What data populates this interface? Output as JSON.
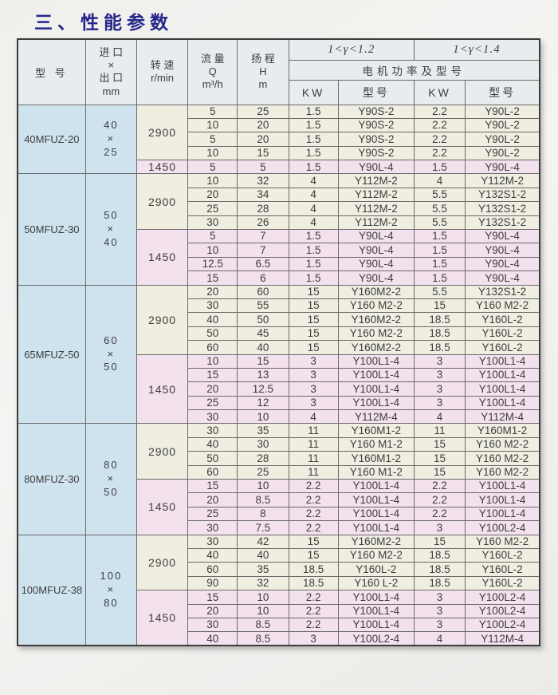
{
  "page": {
    "title": "三、性能参数"
  },
  "table": {
    "headers": {
      "model": "型  号",
      "inlet_outlet": [
        "进 口",
        "×",
        "出 口",
        "mm"
      ],
      "speed": [
        "转 速",
        "r/min"
      ],
      "flow": [
        "流 量",
        "Q",
        "m³/h"
      ],
      "head": [
        "扬 程",
        "H",
        "m"
      ],
      "gamma1": "1<γ<1.2",
      "gamma2": "1<γ<1.4",
      "motor_power_label": "电机功率及型号",
      "kw": "KW",
      "motor_model": "型号"
    },
    "sections": [
      {
        "model": "40MFUZ-20",
        "inlet_outlet": [
          "40",
          "×",
          "25"
        ],
        "speed_groups": [
          {
            "speed": "2900",
            "rows": [
              [
                "5",
                "25",
                "1.5",
                "Y90S-2",
                "2.2",
                "Y90L-2"
              ],
              [
                "10",
                "20",
                "1.5",
                "Y90S-2",
                "2.2",
                "Y90L-2"
              ],
              [
                "5",
                "20",
                "1.5",
                "Y90S-2",
                "2.2",
                "Y90L-2"
              ],
              [
                "10",
                "15",
                "1.5",
                "Y90S-2",
                "2.2",
                "Y90L-2"
              ]
            ]
          },
          {
            "speed": "1450",
            "rows": [
              [
                "5",
                "5",
                "1.5",
                "Y90L-4",
                "1.5",
                "Y90L-4"
              ]
            ]
          }
        ]
      },
      {
        "model": "50MFUZ-30",
        "inlet_outlet": [
          "50",
          "×",
          "40"
        ],
        "speed_groups": [
          {
            "speed": "2900",
            "rows": [
              [
                "10",
                "32",
                "4",
                "Y112M-2",
                "4",
                "Y112M-2"
              ],
              [
                "20",
                "34",
                "4",
                "Y112M-2",
                "5.5",
                "Y132S1-2"
              ],
              [
                "25",
                "28",
                "4",
                "Y112M-2",
                "5.5",
                "Y132S1-2"
              ],
              [
                "30",
                "26",
                "4",
                "Y112M-2",
                "5.5",
                "Y132S1-2"
              ]
            ]
          },
          {
            "speed": "1450",
            "rows": [
              [
                "5",
                "7",
                "1.5",
                "Y90L-4",
                "1.5",
                "Y90L-4"
              ],
              [
                "10",
                "7",
                "1.5",
                "Y90L-4",
                "1.5",
                "Y90L-4"
              ],
              [
                "12.5",
                "6.5",
                "1.5",
                "Y90L-4",
                "1.5",
                "Y90L-4"
              ],
              [
                "15",
                "6",
                "1.5",
                "Y90L-4",
                "1.5",
                "Y90L-4"
              ]
            ]
          }
        ]
      },
      {
        "model": "65MFUZ-50",
        "inlet_outlet": [
          "60",
          "×",
          "50"
        ],
        "speed_groups": [
          {
            "speed": "2900",
            "rows": [
              [
                "20",
                "60",
                "15",
                "Y160M2-2",
                "5.5",
                "Y132S1-2"
              ],
              [
                "30",
                "55",
                "15",
                "Y160 M2-2",
                "15",
                "Y160 M2-2"
              ],
              [
                "40",
                "50",
                "15",
                "Y160M2-2",
                "18.5",
                "Y160L-2"
              ],
              [
                "50",
                "45",
                "15",
                "Y160 M2-2",
                "18.5",
                "Y160L-2"
              ],
              [
                "60",
                "40",
                "15",
                "Y160M2-2",
                "18.5",
                "Y160L-2"
              ]
            ]
          },
          {
            "speed": "1450",
            "rows": [
              [
                "10",
                "15",
                "3",
                "Y100L1-4",
                "3",
                "Y100L1-4"
              ],
              [
                "15",
                "13",
                "3",
                "Y100L1-4",
                "3",
                "Y100L1-4"
              ],
              [
                "20",
                "12.5",
                "3",
                "Y100L1-4",
                "3",
                "Y100L1-4"
              ],
              [
                "25",
                "12",
                "3",
                "Y100L1-4",
                "3",
                "Y100L1-4"
              ],
              [
                "30",
                "10",
                "4",
                "Y112M-4",
                "4",
                "Y112M-4"
              ]
            ]
          }
        ]
      },
      {
        "model": "80MFUZ-30",
        "inlet_outlet": [
          "80",
          "×",
          "50"
        ],
        "speed_groups": [
          {
            "speed": "2900",
            "rows": [
              [
                "30",
                "35",
                "11",
                "Y160M1-2",
                "11",
                "Y160M1-2"
              ],
              [
                "40",
                "30",
                "11",
                "Y160 M1-2",
                "15",
                "Y160 M2-2"
              ],
              [
                "50",
                "28",
                "11",
                "Y160M1-2",
                "15",
                "Y160 M2-2"
              ],
              [
                "60",
                "25",
                "11",
                "Y160 M1-2",
                "15",
                "Y160 M2-2"
              ]
            ]
          },
          {
            "speed": "1450",
            "rows": [
              [
                "15",
                "10",
                "2.2",
                "Y100L1-4",
                "2.2",
                "Y100L1-4"
              ],
              [
                "20",
                "8.5",
                "2.2",
                "Y100L1-4",
                "2.2",
                "Y100L1-4"
              ],
              [
                "25",
                "8",
                "2.2",
                "Y100L1-4",
                "2.2",
                "Y100L1-4"
              ],
              [
                "30",
                "7.5",
                "2.2",
                "Y100L1-4",
                "3",
                "Y100L2-4"
              ]
            ]
          }
        ]
      },
      {
        "model": "100MFUZ-38",
        "inlet_outlet": [
          "100",
          "×",
          "80"
        ],
        "speed_groups": [
          {
            "speed": "2900",
            "rows": [
              [
                "30",
                "42",
                "15",
                "Y160M2-2",
                "15",
                "Y160 M2-2"
              ],
              [
                "40",
                "40",
                "15",
                "Y160 M2-2",
                "18.5",
                "Y160L-2"
              ],
              [
                "60",
                "35",
                "18.5",
                "Y160L-2",
                "18.5",
                "Y160L-2"
              ],
              [
                "90",
                "32",
                "18.5",
                "Y160 L-2",
                "18.5",
                "Y160L-2"
              ]
            ]
          },
          {
            "speed": "1450",
            "rows": [
              [
                "15",
                "10",
                "2.2",
                "Y100L1-4",
                "3",
                "Y100L2-4"
              ],
              [
                "20",
                "10",
                "2.2",
                "Y100L1-4",
                "3",
                "Y100L2-4"
              ],
              [
                "30",
                "8.5",
                "2.2",
                "Y100L1-4",
                "3",
                "Y100L2-4"
              ],
              [
                "40",
                "8.5",
                "3",
                "Y100L2-4",
                "4",
                "Y112M-4"
              ]
            ]
          }
        ]
      }
    ]
  },
  "colors": {
    "title": "#26268c",
    "header_bg": "#e7ecef",
    "model_column_bg": "#cfe3ef",
    "speed_2900_bg": "#efeee1",
    "speed_1450_bg": "#f3e2ee"
  }
}
